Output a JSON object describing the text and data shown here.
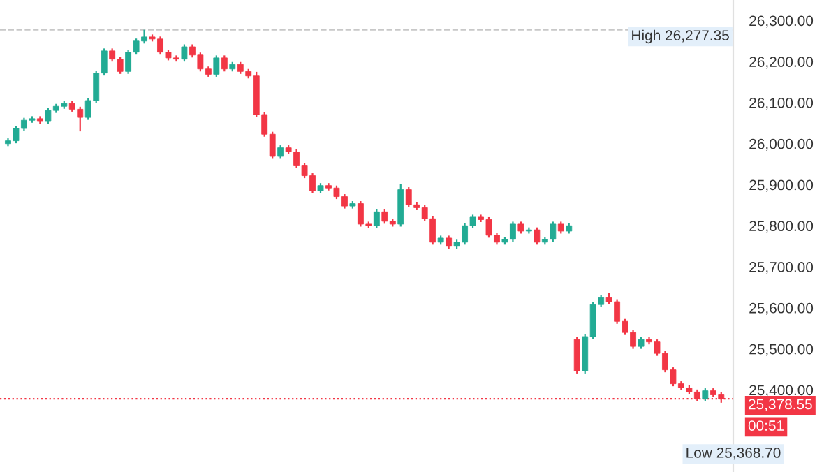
{
  "chart_data": {
    "type": "candlestick",
    "categories": [
      null,
      null,
      null,
      null,
      null,
      null,
      null,
      null,
      null,
      null,
      null,
      null,
      null,
      null,
      null,
      null,
      null,
      null,
      null,
      null,
      null,
      null,
      null,
      null,
      null,
      null,
      null,
      null,
      null,
      null,
      null,
      null,
      null,
      null,
      null,
      null,
      null,
      null,
      null,
      null,
      null,
      null,
      null,
      null,
      null,
      null,
      null,
      null,
      null,
      null,
      null,
      null,
      null,
      null,
      null,
      null,
      null,
      null,
      null,
      null,
      null,
      null,
      null,
      null,
      null,
      null,
      null,
      null,
      null,
      null,
      null,
      null,
      null,
      null,
      null,
      null,
      null,
      null,
      null,
      null,
      null,
      null,
      null,
      null,
      null,
      null,
      null,
      null,
      null,
      null
    ],
    "ohlc": [
      [
        26000,
        26013,
        25994,
        26007
      ],
      [
        26007,
        26043,
        26001,
        26037
      ],
      [
        26037,
        26063,
        26031,
        26057
      ],
      [
        26057,
        26067,
        26051,
        26061
      ],
      [
        26061,
        26067,
        26048,
        26054
      ],
      [
        26054,
        26087,
        26048,
        26081
      ],
      [
        26081,
        26097,
        26075,
        26091
      ],
      [
        26091,
        26104,
        26085,
        26098
      ],
      [
        26098,
        26104,
        26078,
        26084
      ],
      [
        26084,
        26090,
        26030,
        26064
      ],
      [
        26064,
        26111,
        26058,
        26105
      ],
      [
        26105,
        26178,
        26099,
        26172
      ],
      [
        26172,
        26232,
        26166,
        26226
      ],
      [
        26226,
        26232,
        26200,
        26206
      ],
      [
        26206,
        26212,
        26170,
        26176
      ],
      [
        26176,
        26229,
        26170,
        26223
      ],
      [
        26223,
        26256,
        26217,
        26250
      ],
      [
        26250,
        26277.35,
        26244,
        26260
      ],
      [
        26260,
        26266,
        26249,
        26255
      ],
      [
        26255,
        26261,
        26217,
        26223
      ],
      [
        26223,
        26229,
        26203,
        26209
      ],
      [
        26209,
        26215,
        26200,
        26206
      ],
      [
        26206,
        26242,
        26200,
        26236
      ],
      [
        26236,
        26242,
        26210,
        26216
      ],
      [
        26216,
        26222,
        26176,
        26182
      ],
      [
        26182,
        26188,
        26163,
        26169
      ],
      [
        26169,
        26215,
        26163,
        26209
      ],
      [
        26209,
        26215,
        26176,
        26182
      ],
      [
        26182,
        26199,
        26176,
        26193
      ],
      [
        26193,
        26199,
        26170,
        26176
      ],
      [
        26176,
        26182,
        26159,
        26165
      ],
      [
        26165,
        26175,
        26065,
        26071
      ],
      [
        26071,
        26077,
        26017,
        26023
      ],
      [
        26023,
        26029,
        25963,
        25969
      ],
      [
        25969,
        25996,
        25963,
        25990
      ],
      [
        25990,
        25996,
        25974,
        25980
      ],
      [
        25980,
        25986,
        25940,
        25946
      ],
      [
        25946,
        25952,
        25916,
        25922
      ],
      [
        25922,
        25928,
        25879,
        25885
      ],
      [
        25885,
        25904,
        25879,
        25898
      ],
      [
        25898,
        25904,
        25886,
        25892
      ],
      [
        25892,
        25898,
        25865,
        25871
      ],
      [
        25871,
        25877,
        25842,
        25848
      ],
      [
        25848,
        25860,
        25842,
        25854
      ],
      [
        25854,
        25860,
        25798,
        25804
      ],
      [
        25804,
        25810,
        25794,
        25800
      ],
      [
        25800,
        25840,
        25794,
        25834
      ],
      [
        25834,
        25840,
        25805,
        25811
      ],
      [
        25811,
        25817,
        25798,
        25804
      ],
      [
        25804,
        25902,
        25798,
        25888
      ],
      [
        25888,
        25894,
        25845,
        25851
      ],
      [
        25851,
        25857,
        25838,
        25844
      ],
      [
        25844,
        25850,
        25811,
        25817
      ],
      [
        25817,
        25823,
        25754,
        25760
      ],
      [
        25760,
        25776,
        25754,
        25770
      ],
      [
        25770,
        25776,
        25744,
        25750
      ],
      [
        25750,
        25766,
        25744,
        25760
      ],
      [
        25760,
        25806,
        25754,
        25800
      ],
      [
        25800,
        25827,
        25794,
        25821
      ],
      [
        25821,
        25827,
        25809,
        25815
      ],
      [
        25815,
        25821,
        25771,
        25777
      ],
      [
        25777,
        25783,
        25754,
        25760
      ],
      [
        25760,
        25773,
        25754,
        25767
      ],
      [
        25767,
        25810,
        25761,
        25804
      ],
      [
        25804,
        25810,
        25781,
        25787
      ],
      [
        25787,
        25796,
        25781,
        25790
      ],
      [
        25790,
        25796,
        25754,
        25760
      ],
      [
        25760,
        25773,
        25754,
        25767
      ],
      [
        25767,
        25810,
        25761,
        25804
      ],
      [
        25804,
        25810,
        25781,
        25787
      ],
      [
        25787,
        25806,
        25781,
        25800
      ],
      [
        25523,
        25529,
        25440,
        25446
      ],
      [
        25446,
        25536,
        25440,
        25530
      ],
      [
        25530,
        25614,
        25524,
        25608
      ],
      [
        25608,
        25631,
        25602,
        25625
      ],
      [
        25625,
        25637,
        25609,
        25615
      ],
      [
        25615,
        25621,
        25561,
        25567
      ],
      [
        25567,
        25573,
        25534,
        25540
      ],
      [
        25540,
        25546,
        25500,
        25506
      ],
      [
        25506,
        25529,
        25500,
        25523
      ],
      [
        25523,
        25529,
        25511,
        25517
      ],
      [
        25517,
        25523,
        25483,
        25489
      ],
      [
        25489,
        25495,
        25443,
        25449
      ],
      [
        25449,
        25455,
        25409,
        25415
      ],
      [
        25415,
        25421,
        25399,
        25405
      ],
      [
        25405,
        25411,
        25389,
        25395
      ],
      [
        25395,
        25401,
        25372,
        25378
      ],
      [
        25378,
        25404,
        25372,
        25398
      ],
      [
        25398,
        25404,
        25382,
        25388
      ],
      [
        25388,
        25394,
        25368.7,
        25378.55
      ]
    ],
    "colors": [
      "#22ab94",
      "#22ab94",
      "#22ab94",
      "#22ab94",
      "#f23645",
      "#22ab94",
      "#22ab94",
      "#22ab94",
      "#f23645",
      "#f23645",
      "#22ab94",
      "#22ab94",
      "#22ab94",
      "#f23645",
      "#f23645",
      "#22ab94",
      "#22ab94",
      "#22ab94",
      "#f23645",
      "#f23645",
      "#f23645",
      "#f23645",
      "#22ab94",
      "#f23645",
      "#f23645",
      "#f23645",
      "#22ab94",
      "#f23645",
      "#22ab94",
      "#f23645",
      "#f23645",
      "#f23645",
      "#f23645",
      "#f23645",
      "#22ab94",
      "#f23645",
      "#f23645",
      "#f23645",
      "#f23645",
      "#22ab94",
      "#f23645",
      "#f23645",
      "#f23645",
      "#22ab94",
      "#f23645",
      "#f23645",
      "#22ab94",
      "#f23645",
      "#f23645",
      "#22ab94",
      "#f23645",
      "#f23645",
      "#f23645",
      "#f23645",
      "#22ab94",
      "#f23645",
      "#22ab94",
      "#22ab94",
      "#22ab94",
      "#f23645",
      "#f23645",
      "#f23645",
      "#22ab94",
      "#22ab94",
      "#f23645",
      "#22ab94",
      "#f23645",
      "#22ab94",
      "#22ab94",
      "#f23645",
      "#22ab94",
      "#f23645",
      "#22ab94",
      "#22ab94",
      "#22ab94",
      "#f23645",
      "#f23645",
      "#f23645",
      "#f23645",
      "#22ab94",
      "#f23645",
      "#f23645",
      "#f23645",
      "#f23645",
      "#f23645",
      "#f23645",
      "#f23645",
      "#22ab94",
      "#f23645",
      "#f23645"
    ],
    "ylim": [
      25200,
      26350
    ],
    "yticks": [
      {
        "value": 25400,
        "label": "25,400.00"
      },
      {
        "value": 25500,
        "label": "25,500.00"
      },
      {
        "value": 25600,
        "label": "25,600.00"
      },
      {
        "value": 25700,
        "label": "25,700.00"
      },
      {
        "value": 25800,
        "label": "25,800.00"
      },
      {
        "value": 25900,
        "label": "25,900.00"
      },
      {
        "value": 26000,
        "label": "26,000.00"
      },
      {
        "value": 26100,
        "label": "26,100.00"
      },
      {
        "value": 26200,
        "label": "26,200.00"
      },
      {
        "value": 26300,
        "label": "26,300.00"
      }
    ],
    "tick_labels": "y",
    "grid": false,
    "ref_lines": [
      {
        "axis": "y",
        "value": 26277.35,
        "label": "High 26,277.35",
        "color": "#c8c8c8",
        "line_style": "dashed"
      },
      {
        "axis": "y",
        "value": 25378.55,
        "label": "25,378.55",
        "color": "#f23645",
        "line_style": "dotted"
      }
    ],
    "annotations": [
      "00:51",
      "Low 25,368.70"
    ]
  }
}
